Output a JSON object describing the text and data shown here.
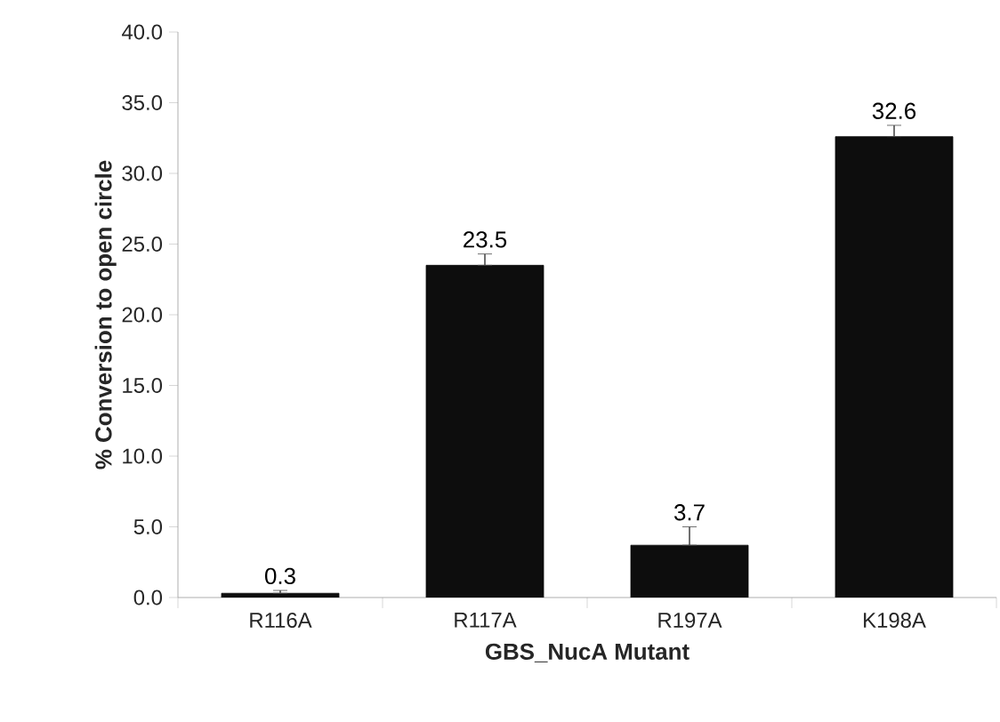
{
  "chart_data": {
    "type": "bar",
    "xlabel": "GBS_NucA Mutant",
    "ylabel": "% Conversion to open circle",
    "categories": [
      "R116A",
      "R117A",
      "R197A",
      "K198A"
    ],
    "values": [
      0.3,
      23.5,
      3.7,
      32.6
    ],
    "errors": [
      [
        0.3,
        0.5
      ],
      [
        23.5,
        24.3
      ],
      [
        3.7,
        5.0
      ],
      [
        32.6,
        33.4
      ]
    ],
    "color": "#0d0d0d",
    "data_labels": true,
    "ylim": [
      0,
      40
    ],
    "yticks": [
      {
        "value": 0,
        "label": "0.0"
      },
      {
        "value": 5,
        "label": "5.0"
      },
      {
        "value": 10,
        "label": "10.0"
      },
      {
        "value": 15,
        "label": "15.0"
      },
      {
        "value": 20,
        "label": "20.0"
      },
      {
        "value": 25,
        "label": "25.0"
      },
      {
        "value": 30,
        "label": "30.0"
      },
      {
        "value": 35,
        "label": "35.0"
      },
      {
        "value": 40,
        "label": "40.0"
      }
    ]
  }
}
